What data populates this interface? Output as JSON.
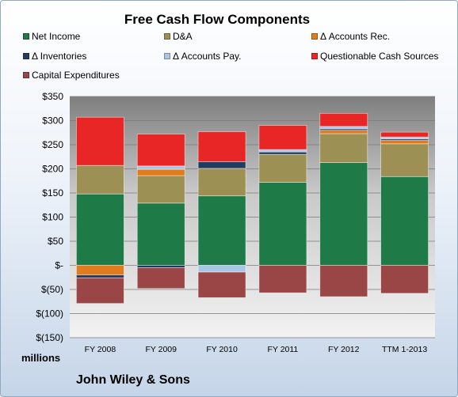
{
  "chart_data": {
    "type": "bar",
    "stacked": true,
    "title": "Free Cash Flow Components",
    "units_label": "millions",
    "company": "John Wiley & Sons",
    "categories": [
      "FY 2008",
      "FY 2009",
      "FY 2010",
      "FY 2011",
      "FY 2012",
      "TTM 1-2013"
    ],
    "ylim": [
      -150,
      350
    ],
    "yticks": [
      {
        "value": 350,
        "label": "$350"
      },
      {
        "value": 300,
        "label": "$300"
      },
      {
        "value": 250,
        "label": "$250"
      },
      {
        "value": 200,
        "label": "$200"
      },
      {
        "value": 150,
        "label": "$150"
      },
      {
        "value": 100,
        "label": "$100"
      },
      {
        "value": 50,
        "label": "$50"
      },
      {
        "value": 0,
        "label": "$-"
      },
      {
        "value": -50,
        "label": "$(50)"
      },
      {
        "value": -100,
        "label": "$(100)"
      },
      {
        "value": -150,
        "label": "$(150)"
      }
    ],
    "grid": true,
    "legend_position": "top",
    "series": [
      {
        "name": "Net Income",
        "color": "#1e7a46",
        "values": [
          148,
          129,
          144,
          172,
          213,
          184
        ]
      },
      {
        "name": "D&A",
        "color": "#9d9055",
        "values": [
          59,
          57,
          57,
          58,
          60,
          68
        ]
      },
      {
        "name": "Δ Accounts Rec.",
        "color": "#e07b1e",
        "values": [
          -20,
          13,
          0,
          0,
          7,
          7
        ]
      },
      {
        "name": "Δ Inventories",
        "color": "#243b60",
        "values": [
          -6,
          -5,
          14,
          5,
          3,
          3
        ]
      },
      {
        "name": "Δ Accounts Pay.",
        "color": "#a9c6e6",
        "values": [
          0,
          7,
          -14,
          5,
          5,
          4
        ]
      },
      {
        "name": "Questionable Cash Sources",
        "color": "#e82626",
        "values": [
          100,
          66,
          62,
          50,
          27,
          10
        ]
      },
      {
        "name": "Capital Expenditures",
        "color": "#9a4646",
        "values": [
          -53,
          -43,
          -53,
          -57,
          -65,
          -58
        ]
      }
    ]
  }
}
